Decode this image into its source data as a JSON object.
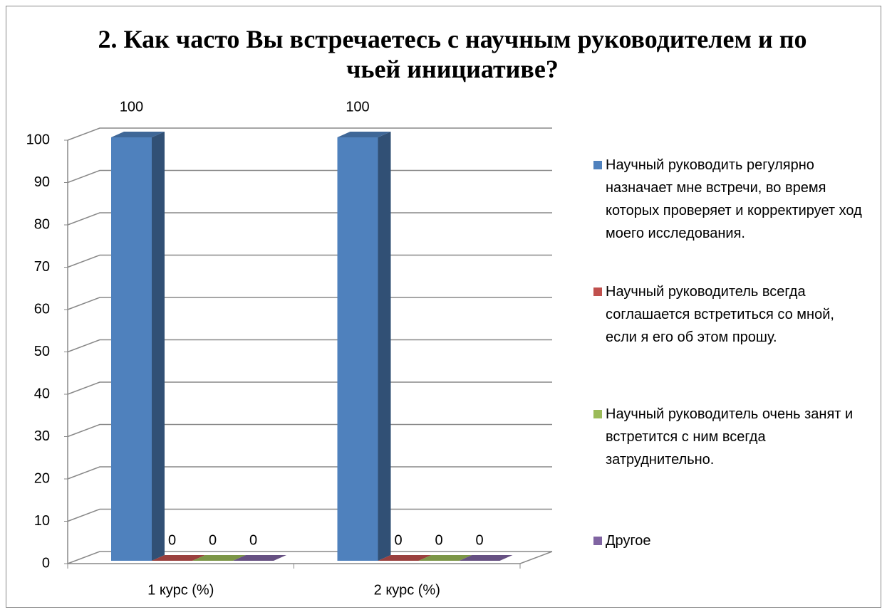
{
  "chart_data": {
    "type": "bar3d",
    "title": "2. Как часто Вы встречаетесь с научным руководителем и по чьей инициативе?",
    "categories": [
      "1 курс (%)",
      "2 курс (%)"
    ],
    "series": [
      {
        "name": "Научный руководить регулярно назначает мне встречи, во время которых проверяет и корректирует ход моего исследования.",
        "color": "#4f81bd",
        "values": [
          100,
          100
        ]
      },
      {
        "name": "Научный руководитель всегда соглашается встретиться со мной, если я его об этом прошу.",
        "color": "#c0504d",
        "values": [
          0,
          0
        ]
      },
      {
        "name": "Научный руководитель очень занят и встретится с ним всегда затруднительно.",
        "color": "#9bbb59",
        "values": [
          0,
          0
        ]
      },
      {
        "name": "Другое",
        "color": "#8064a2",
        "values": [
          0,
          0
        ]
      }
    ],
    "ylim": [
      0,
      100
    ],
    "yticks": [
      0,
      10,
      20,
      30,
      40,
      50,
      60,
      70,
      80,
      90,
      100
    ],
    "grid": true,
    "legend": "right"
  }
}
